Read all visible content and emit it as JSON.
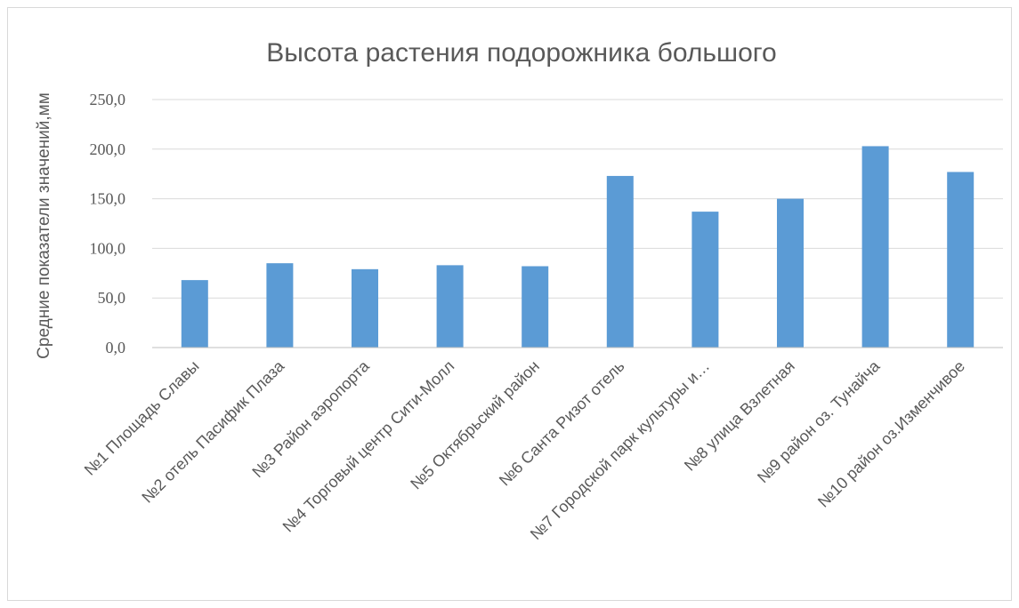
{
  "chart_data": {
    "type": "bar",
    "title": "Высота растения подорожника большого",
    "xlabel": "",
    "ylabel": "Средние показатели значений,мм",
    "ylim": [
      0,
      250
    ],
    "yticks": [
      "0,0",
      "50,0",
      "100,0",
      "150,0",
      "200,0",
      "250,0"
    ],
    "grid": true,
    "legend": "none",
    "bar_color": "#5b9bd5",
    "categories": [
      "№1 Площадь Славы",
      "№2 отель Пасифик Плаза",
      "№3 Район аэропорта",
      "№4 Торговый центр Сити-Молл",
      "№5 Октябрьский район",
      "№6 Санта Ризот отель",
      "№7 Городской парк культуры и…",
      "№8 улица Взлетная",
      "№9 район оз. Тунайча",
      "№10 район оз.Изменчивое"
    ],
    "values": [
      68,
      85,
      79,
      83,
      82,
      173,
      137,
      150,
      203,
      177
    ]
  }
}
